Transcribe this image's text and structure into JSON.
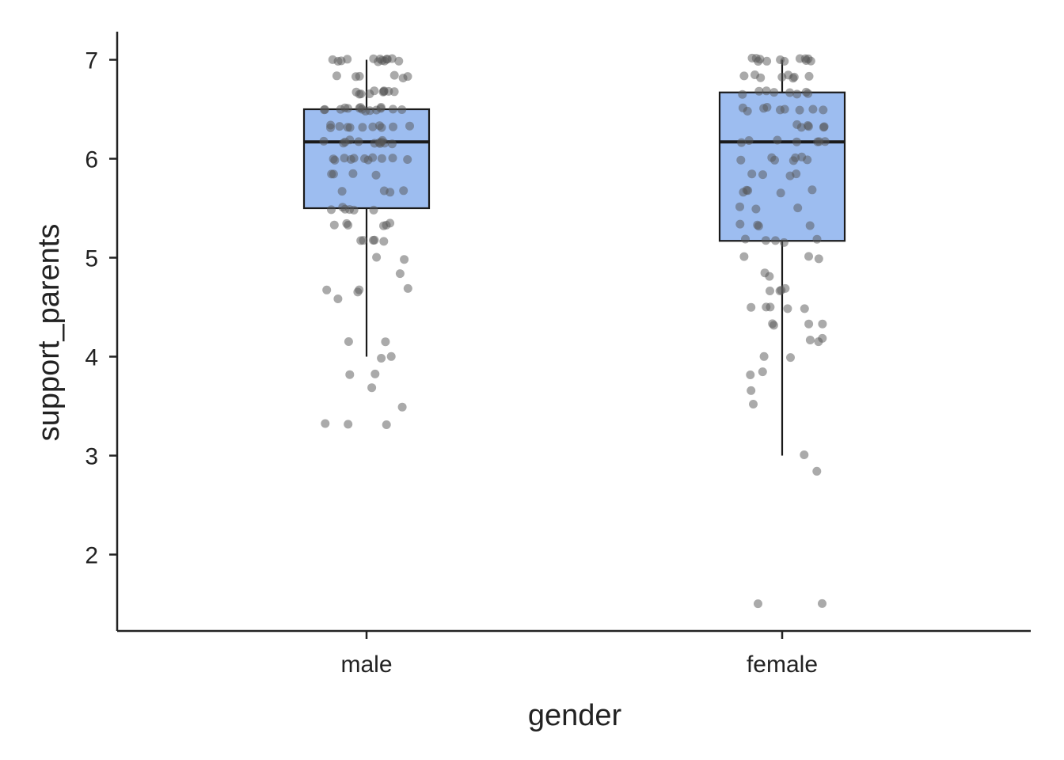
{
  "chart_data": {
    "type": "box",
    "title": "",
    "xlabel": "gender",
    "ylabel": "support_parents",
    "ylim": [
      1.28,
      7.28
    ],
    "yticks": [
      2,
      3,
      4,
      5,
      6,
      7
    ],
    "categories": [
      "male",
      "female"
    ],
    "grid": false,
    "colors": {
      "box_fill": "#9DBDF0",
      "box_stroke": "#1a1a1a",
      "point": "#555555",
      "axis": "#222222"
    },
    "boxes": [
      {
        "category": "male",
        "whisker_low": 4.0,
        "q1": 5.5,
        "median": 6.17,
        "q3": 6.5,
        "whisker_high": 7.0
      },
      {
        "category": "female",
        "whisker_low": 3.0,
        "q1": 5.17,
        "median": 6.17,
        "q3": 6.67,
        "whisker_high": 7.0
      }
    ],
    "points": [
      {
        "category": "male",
        "values": [
          7.0,
          7.0,
          7.0,
          7.0,
          7.0,
          7.0,
          7.0,
          7.0,
          7.0,
          7.0,
          7.0,
          7.0,
          7.0,
          6.83,
          6.83,
          6.83,
          6.83,
          6.83,
          6.83,
          6.67,
          6.67,
          6.67,
          6.67,
          6.67,
          6.67,
          6.67,
          6.67,
          6.67,
          6.67,
          6.5,
          6.5,
          6.5,
          6.5,
          6.5,
          6.5,
          6.5,
          6.5,
          6.5,
          6.5,
          6.5,
          6.5,
          6.5,
          6.5,
          6.5,
          6.33,
          6.33,
          6.33,
          6.33,
          6.33,
          6.33,
          6.33,
          6.33,
          6.33,
          6.33,
          6.33,
          6.17,
          6.17,
          6.17,
          6.17,
          6.17,
          6.17,
          6.17,
          6.17,
          6.17,
          6.17,
          6.17,
          6.17,
          6.0,
          6.0,
          6.0,
          6.0,
          6.0,
          6.0,
          6.0,
          6.0,
          6.0,
          6.0,
          6.0,
          5.83,
          5.83,
          5.83,
          5.83,
          5.67,
          5.67,
          5.67,
          5.67,
          5.5,
          5.5,
          5.5,
          5.5,
          5.5,
          5.5,
          5.33,
          5.33,
          5.33,
          5.33,
          5.33,
          5.33,
          5.17,
          5.17,
          5.17,
          5.17,
          5.17,
          5.0,
          5.0,
          4.83,
          4.67,
          4.67,
          4.67,
          4.67,
          4.6,
          4.17,
          4.17,
          4.0,
          4.0,
          3.83,
          3.83,
          3.67,
          3.5,
          3.33,
          3.33,
          3.33
        ]
      },
      {
        "category": "female",
        "values": [
          7.0,
          7.0,
          7.0,
          7.0,
          7.0,
          7.0,
          7.0,
          7.0,
          7.0,
          7.0,
          7.0,
          7.0,
          6.83,
          6.83,
          6.83,
          6.83,
          6.83,
          6.83,
          6.83,
          6.83,
          6.67,
          6.67,
          6.67,
          6.67,
          6.67,
          6.67,
          6.67,
          6.67,
          6.5,
          6.5,
          6.5,
          6.5,
          6.5,
          6.5,
          6.5,
          6.5,
          6.5,
          6.33,
          6.33,
          6.33,
          6.33,
          6.33,
          6.33,
          6.17,
          6.17,
          6.17,
          6.17,
          6.17,
          6.17,
          6.17,
          6.0,
          6.0,
          6.0,
          6.0,
          6.0,
          6.0,
          6.0,
          5.83,
          5.83,
          5.83,
          5.83,
          5.67,
          5.67,
          5.67,
          5.67,
          5.67,
          5.5,
          5.5,
          5.5,
          5.33,
          5.33,
          5.33,
          5.33,
          5.17,
          5.17,
          5.17,
          5.17,
          5.17,
          5.0,
          5.0,
          5.0,
          4.83,
          4.83,
          4.67,
          4.67,
          4.67,
          4.67,
          4.5,
          4.5,
          4.5,
          4.5,
          4.5,
          4.33,
          4.33,
          4.33,
          4.33,
          4.17,
          4.17,
          4.17,
          4.0,
          4.0,
          3.83,
          3.83,
          3.67,
          3.5,
          3.0,
          2.83,
          1.5,
          1.5
        ]
      }
    ]
  }
}
